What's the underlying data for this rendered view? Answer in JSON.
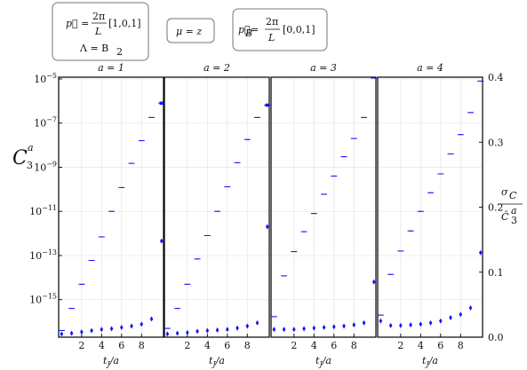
{
  "legend": {
    "box1": {
      "line1_lhs": "p⃗ = ",
      "line1_num": "2π",
      "line1_den": "L",
      "line1_vec": "[1,0,1]",
      "line2": "Λ = B",
      "line2_sub": "2"
    },
    "box2": {
      "text": "μ = z"
    },
    "box3": {
      "lhs": "p⃗",
      "lhs_sub": "B",
      "eq": " = ",
      "num": "2π",
      "den": "L",
      "vec": "[0,0,1]"
    }
  },
  "chart_data": {
    "type": "scatter",
    "panels": [
      {
        "title": "a = 1",
        "xlabel": "t_J/a",
        "xticks": [
          2,
          4,
          6,
          8
        ],
        "xlim": [
          -0.3,
          10.2
        ],
        "left_axis": {
          "scale": "log",
          "ylim": [
            2e-17,
            1.2e-05
          ],
          "tick_labels": [
            "10^-15",
            "10^-13",
            "10^-11",
            "10^-9",
            "10^-7",
            "10^-5"
          ],
          "ylabel": "C_3^a"
        },
        "series": [
          {
            "axis": "left",
            "x": [
              0,
              1,
              2,
              3,
              4,
              5,
              6,
              7,
              8,
              9,
              10
            ],
            "y": [
              4e-17,
              4e-16,
              5e-15,
              6e-14,
              7e-13,
              1e-11,
              1.2e-10,
              1.5e-09,
              1.6e-08,
              1.8e-07,
              8e-07
            ],
            "yerr_rel": [
              0.1,
              0.1,
              0.1,
              0.1,
              0.1,
              0.1,
              0.1,
              0.1,
              0.1,
              0.1,
              0.4
            ]
          },
          {
            "axis": "right",
            "x": [
              0,
              1,
              2,
              3,
              4,
              5,
              6,
              7,
              8,
              9,
              10
            ],
            "y": [
              0.005,
              0.006,
              0.008,
              0.01,
              0.012,
              0.013,
              0.015,
              0.017,
              0.02,
              0.028,
              0.148
            ]
          }
        ]
      },
      {
        "title": "a = 2",
        "xlabel": "t_J/a",
        "xticks": [
          2,
          4,
          6,
          8
        ],
        "xlim": [
          -0.3,
          10.2
        ],
        "series": [
          {
            "axis": "left",
            "x": [
              0,
              1,
              2,
              3,
              4,
              5,
              6,
              7,
              8,
              9,
              10
            ],
            "y": [
              5e-17,
              4e-16,
              5e-15,
              7e-14,
              8e-13,
              1e-11,
              1.3e-10,
              1.6e-09,
              1.8e-08,
              1.8e-07,
              6.5e-07
            ],
            "yerr_rel": [
              0.1,
              0.1,
              0.1,
              0.1,
              0.1,
              0.1,
              0.1,
              0.1,
              0.1,
              0.1,
              0.4
            ]
          },
          {
            "axis": "right",
            "x": [
              0,
              1,
              2,
              3,
              4,
              5,
              6,
              7,
              8,
              9,
              10
            ],
            "y": [
              0.005,
              0.006,
              0.007,
              0.009,
              0.01,
              0.011,
              0.012,
              0.014,
              0.017,
              0.022,
              0.17
            ]
          }
        ]
      },
      {
        "title": "a = 3",
        "xlabel": "t_J/a",
        "xticks": [
          2,
          4,
          6,
          8
        ],
        "xlim": [
          -0.3,
          10.2
        ],
        "series": [
          {
            "axis": "left",
            "x": [
              0,
              1,
              2,
              3,
              4,
              5,
              6,
              7,
              8,
              9,
              10
            ],
            "y": [
              1.7e-16,
              1.2e-14,
              1.5e-13,
              1.2e-12,
              8e-12,
              6e-11,
              4e-10,
              3e-09,
              2e-08,
              1.8e-07,
              1.1e-05
            ]
          },
          {
            "axis": "right",
            "x": [
              0,
              1,
              2,
              3,
              4,
              5,
              6,
              7,
              8,
              9,
              10
            ],
            "y": [
              0.012,
              0.012,
              0.012,
              0.013,
              0.014,
              0.015,
              0.016,
              0.017,
              0.019,
              0.022,
              0.085
            ]
          }
        ]
      },
      {
        "title": "a = 4",
        "xlabel": "t_J/a",
        "xticks": [
          2,
          4,
          6,
          8
        ],
        "xlim": [
          -0.3,
          10.2
        ],
        "right_axis": {
          "scale": "linear",
          "ylim": [
            0.0,
            0.4
          ],
          "tick_labels": [
            "0.0",
            "0.1",
            "0.2",
            "0.3",
            "0.4"
          ],
          "ylabel": "σ_{C_3^a} / C̄_3^a"
        },
        "series": [
          {
            "axis": "left",
            "x": [
              0,
              1,
              2,
              3,
              4,
              5,
              6,
              7,
              8,
              9,
              10
            ],
            "y": [
              2e-16,
              1.4e-14,
              1.6e-13,
              1.3e-12,
              1e-11,
              7e-11,
              5e-10,
              4e-09,
              3e-08,
              3e-07,
              8e-06
            ]
          },
          {
            "axis": "right",
            "x": [
              0,
              1,
              2,
              3,
              4,
              5,
              6,
              7,
              8,
              9,
              10
            ],
            "y": [
              0.025,
              0.018,
              0.018,
              0.019,
              0.02,
              0.022,
              0.025,
              0.03,
              0.035,
              0.045,
              0.13
            ]
          }
        ]
      }
    ]
  }
}
